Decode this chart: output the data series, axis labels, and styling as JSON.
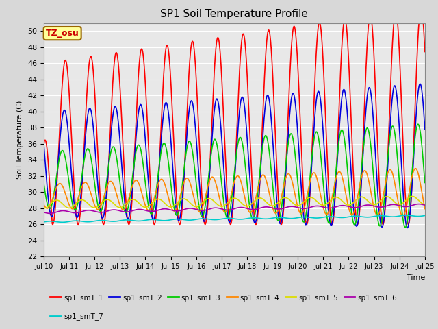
{
  "title": "SP1 Soil Temperature Profile",
  "xlabel": "Time",
  "ylabel": "Soil Temperature (C)",
  "ylim": [
    22,
    51
  ],
  "yticks": [
    22,
    24,
    26,
    28,
    30,
    32,
    34,
    36,
    38,
    40,
    42,
    44,
    46,
    48,
    50
  ],
  "xtick_labels": [
    "Jul 10",
    "Jul 11",
    "Jul 12",
    "Jul 13",
    "Jul 14",
    "Jul 15",
    "Jul 16",
    "Jul 17",
    "Jul 18",
    "Jul 19",
    "Jul 20",
    "Jul 21",
    "Jul 22",
    "Jul 23",
    "Jul 24",
    "Jul 25"
  ],
  "annotation_text": "TZ_osu",
  "annotation_color": "#cc0000",
  "annotation_bg": "#ffff99",
  "annotation_border": "#996600",
  "series_colors": [
    "#ff0000",
    "#0000dd",
    "#00cc00",
    "#ff8800",
    "#dddd00",
    "#aa00aa",
    "#00cccc"
  ],
  "series_labels": [
    "sp1_smT_1",
    "sp1_smT_2",
    "sp1_smT_3",
    "sp1_smT_4",
    "sp1_smT_5",
    "sp1_smT_6",
    "sp1_smT_7"
  ],
  "background_color": "#d8d8d8",
  "plot_bg": "#e8e8e8",
  "grid_color": "#ffffff",
  "num_days": 15,
  "points_per_day": 144
}
